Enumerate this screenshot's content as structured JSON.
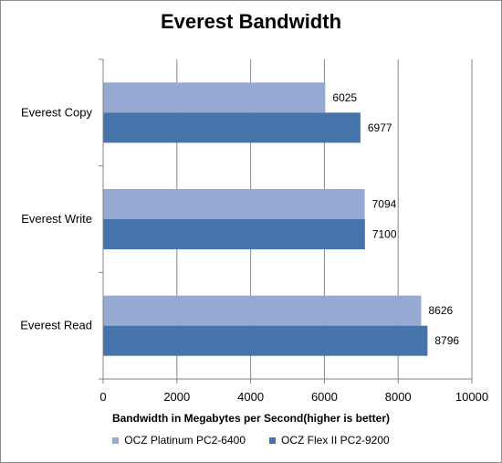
{
  "chart_data": {
    "type": "bar",
    "orientation": "horizontal",
    "title": "Everest Bandwidth",
    "xlabel": "Bandwidth  in Megabytes  per Second(higher  is better)",
    "ylabel": "",
    "categories": [
      "Everest Copy",
      "Everest Write",
      "Everest Read"
    ],
    "series": [
      {
        "name": "OCZ Platinum  PC2-6400",
        "color": "#95a9d3",
        "values": [
          6025,
          7094,
          8626
        ]
      },
      {
        "name": "OCZ Flex II PC2-9200",
        "color": "#4673aa",
        "values": [
          6977,
          7100,
          8796
        ]
      }
    ],
    "xlim": [
      0,
      10000
    ],
    "xticks": [
      0,
      2000,
      4000,
      6000,
      8000,
      10000
    ],
    "grid": true,
    "legend_position": "bottom"
  }
}
